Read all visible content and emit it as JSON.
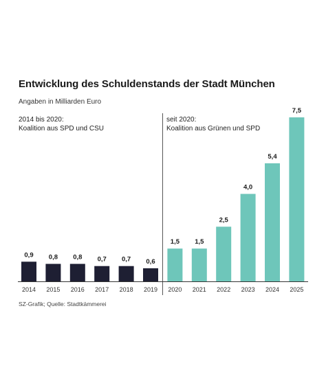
{
  "title": "Entwicklung des Schuldenstands der Stadt München",
  "subtitle": "Angaben in Milliarden Euro",
  "periods": [
    {
      "line1": "2014 bis 2020:",
      "line2": "Koalition aus SPD und CSU"
    },
    {
      "line1": "seit 2020:",
      "line2": "Koalition aus Grünen und SPD"
    }
  ],
  "source": "SZ-Grafik; Quelle: Stadtkämmerei",
  "colors": {
    "period1": "#1e1f33",
    "period2": "#6ec6ba"
  },
  "chart_data": {
    "type": "bar",
    "title": "Entwicklung des Schuldenstands der Stadt München",
    "subtitle": "Angaben in Milliarden Euro",
    "xlabel": "",
    "ylabel": "",
    "categories": [
      "2014",
      "2015",
      "2016",
      "2017",
      "2018",
      "2019",
      "2020",
      "2021",
      "2022",
      "2023",
      "2024",
      "2025"
    ],
    "values": [
      0.9,
      0.8,
      0.8,
      0.7,
      0.7,
      0.6,
      1.5,
      1.5,
      2.5,
      4.0,
      5.4,
      7.5
    ],
    "value_labels": [
      "0,9",
      "0,8",
      "0,8",
      "0,7",
      "0,7",
      "0,6",
      "1,5",
      "1,5",
      "2,5",
      "4,0",
      "5,4",
      "7,5"
    ],
    "ylim": [
      0,
      7.5
    ],
    "grid": false,
    "legend": "none"
  }
}
